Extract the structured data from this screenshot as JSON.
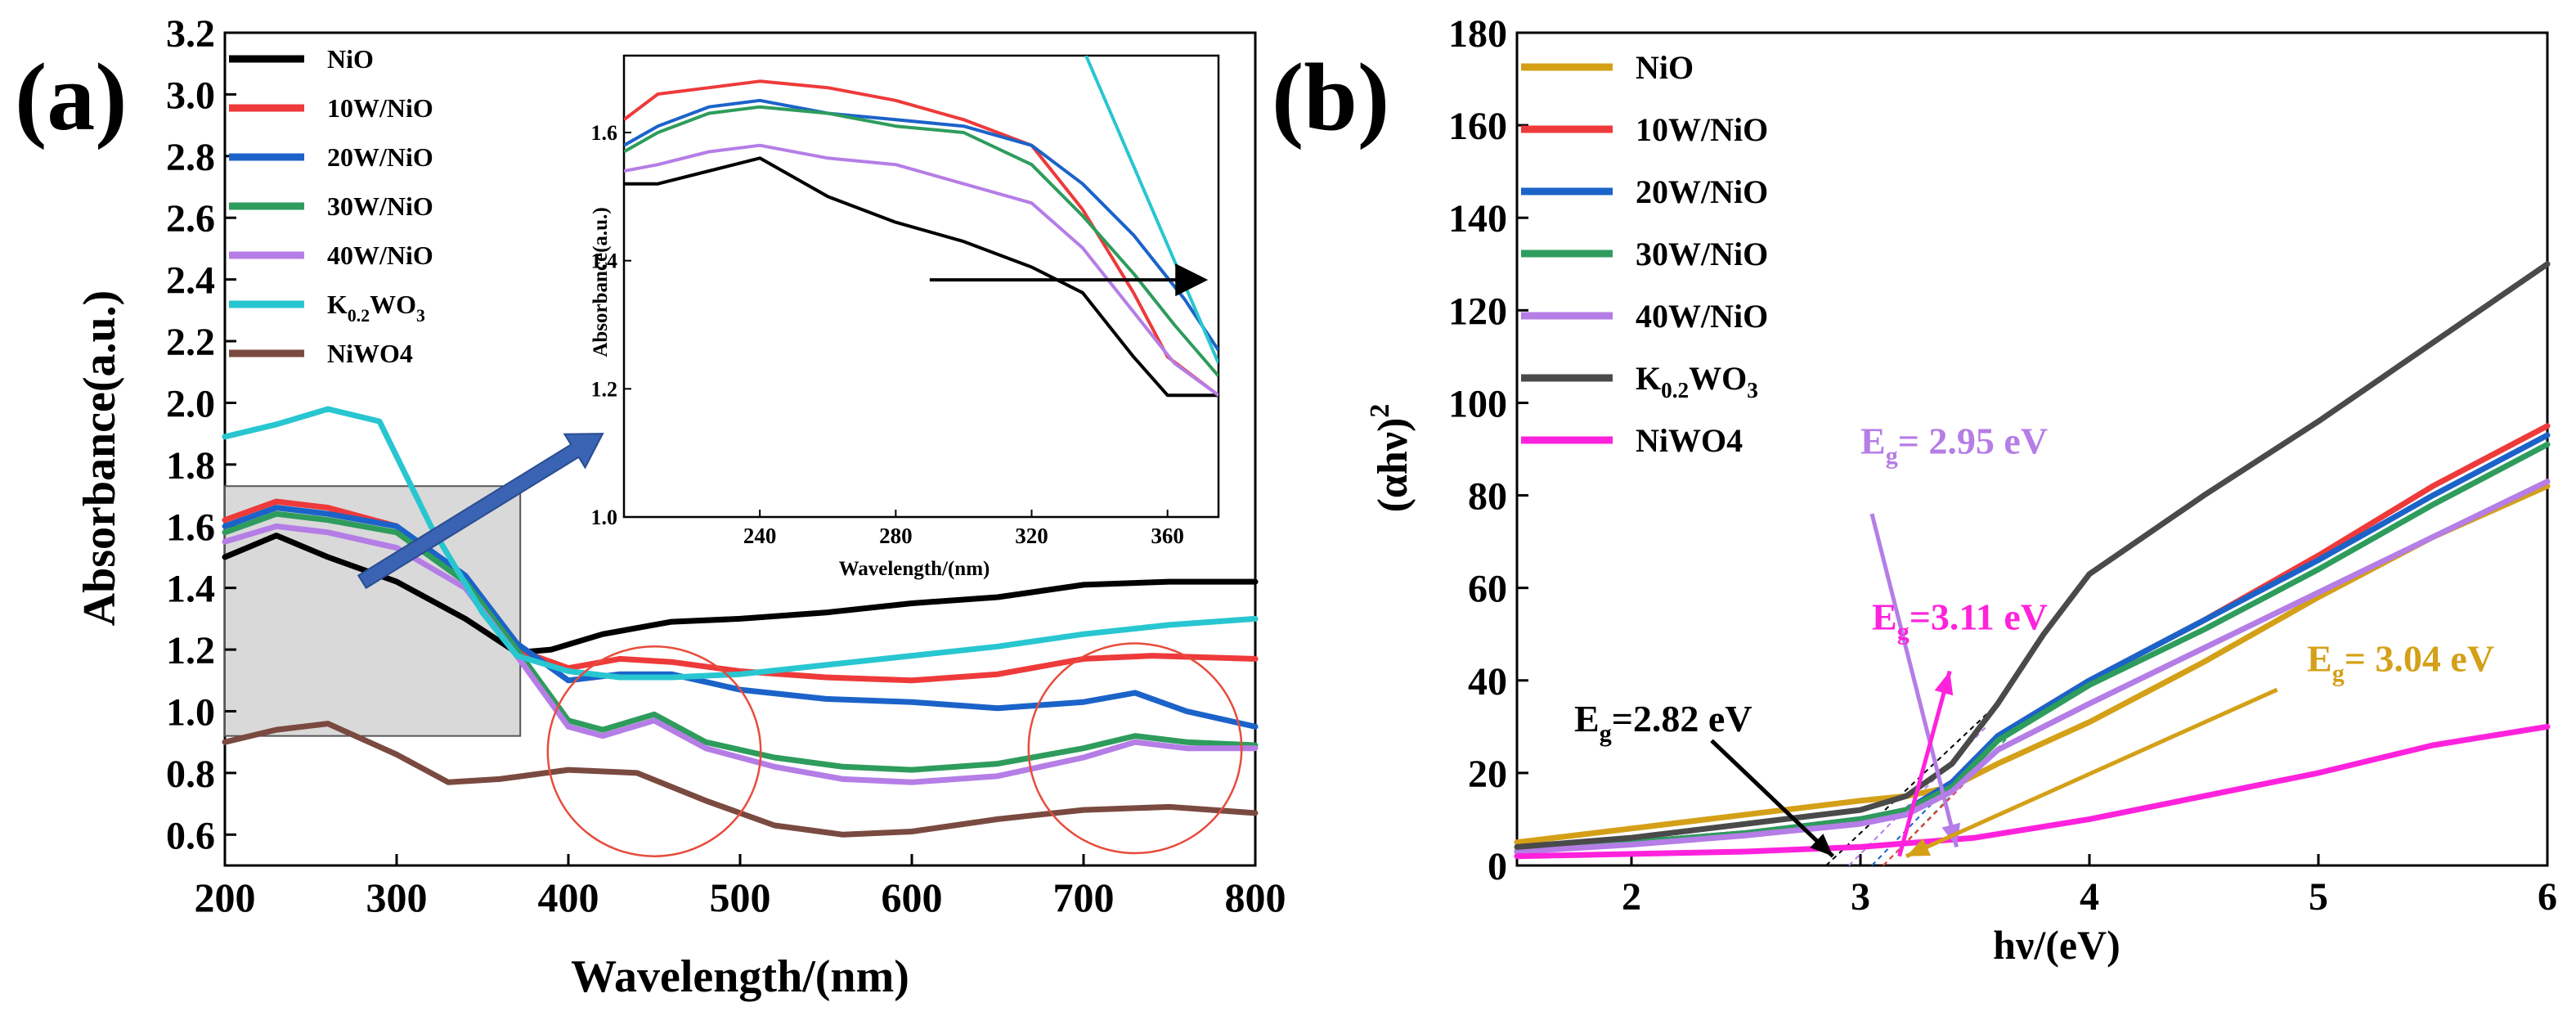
{
  "panel_a": {
    "label": "(a)",
    "inset_arrow_color": "#3a63b4",
    "chart_data": {
      "type": "line",
      "title": "",
      "xlabel": "Wavelength/(nm)",
      "ylabel": "Absorbance(a.u.)",
      "xlim": [
        200,
        800
      ],
      "ylim": [
        0.5,
        3.2
      ],
      "xticks": [
        200,
        300,
        400,
        500,
        600,
        700,
        800
      ],
      "yticks": [
        0.6,
        0.8,
        1.0,
        1.2,
        1.4,
        1.6,
        1.8,
        2.0,
        2.2,
        2.4,
        2.6,
        2.8,
        3.0,
        3.2
      ],
      "legend": "top-left",
      "series": [
        {
          "name": "NiO",
          "color": "#000000",
          "x": [
            200,
            230,
            260,
            300,
            340,
            370,
            390,
            420,
            460,
            500,
            550,
            600,
            650,
            700,
            750,
            800
          ],
          "y": [
            1.5,
            1.57,
            1.5,
            1.42,
            1.3,
            1.19,
            1.2,
            1.25,
            1.29,
            1.3,
            1.32,
            1.35,
            1.37,
            1.41,
            1.42,
            1.42
          ]
        },
        {
          "name": "10W/NiO",
          "color": "#ee3a3a",
          "x": [
            200,
            230,
            260,
            300,
            340,
            370,
            400,
            430,
            460,
            500,
            550,
            600,
            650,
            700,
            740,
            800
          ],
          "y": [
            1.62,
            1.68,
            1.66,
            1.6,
            1.42,
            1.2,
            1.14,
            1.17,
            1.16,
            1.13,
            1.11,
            1.1,
            1.12,
            1.17,
            1.18,
            1.17
          ]
        },
        {
          "name": "20W/NiO",
          "color": "#1b63c9",
          "x": [
            200,
            230,
            260,
            300,
            340,
            370,
            400,
            430,
            460,
            500,
            550,
            600,
            650,
            700,
            730,
            760,
            800
          ],
          "y": [
            1.6,
            1.66,
            1.64,
            1.6,
            1.44,
            1.22,
            1.1,
            1.12,
            1.12,
            1.07,
            1.04,
            1.03,
            1.01,
            1.03,
            1.06,
            1.0,
            0.95
          ]
        },
        {
          "name": "30W/NiO",
          "color": "#2e9c5c",
          "x": [
            200,
            230,
            260,
            300,
            340,
            370,
            400,
            420,
            450,
            480,
            520,
            560,
            600,
            650,
            700,
            730,
            760,
            800
          ],
          "y": [
            1.58,
            1.64,
            1.62,
            1.58,
            1.42,
            1.2,
            0.97,
            0.94,
            0.99,
            0.9,
            0.85,
            0.82,
            0.81,
            0.83,
            0.88,
            0.92,
            0.9,
            0.89
          ]
        },
        {
          "name": "40W/NiO",
          "color": "#b57de6",
          "x": [
            200,
            230,
            260,
            300,
            340,
            370,
            400,
            420,
            450,
            480,
            520,
            560,
            600,
            650,
            700,
            730,
            760,
            800
          ],
          "y": [
            1.55,
            1.6,
            1.58,
            1.53,
            1.4,
            1.18,
            0.95,
            0.92,
            0.97,
            0.88,
            0.82,
            0.78,
            0.77,
            0.79,
            0.85,
            0.9,
            0.88,
            0.88
          ]
        },
        {
          "name": "K0.2WO3",
          "color": "#28c6d0",
          "x": [
            200,
            230,
            260,
            290,
            320,
            350,
            370,
            400,
            430,
            460,
            500,
            550,
            600,
            650,
            700,
            750,
            800
          ],
          "y": [
            1.89,
            1.93,
            1.98,
            1.94,
            1.6,
            1.32,
            1.18,
            1.13,
            1.11,
            1.11,
            1.12,
            1.15,
            1.18,
            1.21,
            1.25,
            1.28,
            1.3
          ]
        },
        {
          "name": "NiWO4",
          "color": "#7a4a40",
          "x": [
            200,
            230,
            260,
            300,
            330,
            360,
            400,
            440,
            480,
            520,
            560,
            600,
            650,
            700,
            750,
            800
          ],
          "y": [
            0.9,
            0.94,
            0.96,
            0.86,
            0.77,
            0.78,
            0.81,
            0.8,
            0.71,
            0.63,
            0.6,
            0.61,
            0.65,
            0.68,
            0.69,
            0.67
          ]
        }
      ],
      "inset": {
        "xlabel": "Wavelength/(nm)",
        "ylabel": "Absorbance(a.u.)",
        "xlim": [
          200,
          375
        ],
        "ylim": [
          1.0,
          1.72
        ],
        "xticks": [
          240,
          280,
          320,
          360
        ],
        "yticks": [
          1.0,
          1.2,
          1.4,
          1.6
        ],
        "series": [
          {
            "name": "NiO",
            "x": [
              200,
              210,
              225,
              240,
              260,
              280,
              300,
              320,
              335,
              350,
              360,
              375
            ],
            "y": [
              1.52,
              1.52,
              1.54,
              1.56,
              1.5,
              1.46,
              1.43,
              1.39,
              1.35,
              1.25,
              1.19,
              1.19
            ]
          },
          {
            "name": "10W/NiO",
            "x": [
              200,
              210,
              225,
              240,
              260,
              280,
              300,
              320,
              335,
              350,
              360,
              375
            ],
            "y": [
              1.62,
              1.66,
              1.67,
              1.68,
              1.67,
              1.65,
              1.62,
              1.58,
              1.48,
              1.35,
              1.25,
              1.19
            ]
          },
          {
            "name": "20W/NiO",
            "x": [
              200,
              210,
              225,
              240,
              260,
              280,
              300,
              320,
              335,
              350,
              365,
              375
            ],
            "y": [
              1.58,
              1.61,
              1.64,
              1.65,
              1.63,
              1.62,
              1.61,
              1.58,
              1.52,
              1.44,
              1.34,
              1.26
            ]
          },
          {
            "name": "30W/NiO",
            "x": [
              200,
              210,
              225,
              240,
              260,
              280,
              300,
              320,
              335,
              350,
              362,
              375
            ],
            "y": [
              1.57,
              1.6,
              1.63,
              1.64,
              1.63,
              1.61,
              1.6,
              1.55,
              1.47,
              1.38,
              1.3,
              1.22
            ]
          },
          {
            "name": "40W/NiO",
            "x": [
              200,
              210,
              225,
              240,
              260,
              280,
              300,
              320,
              335,
              350,
              362,
              375
            ],
            "y": [
              1.54,
              1.55,
              1.57,
              1.58,
              1.56,
              1.55,
              1.52,
              1.49,
              1.42,
              1.32,
              1.24,
              1.19
            ]
          },
          {
            "name": "K0.2WO3",
            "x": [
              336,
              375
            ],
            "y": [
              1.72,
              1.24
            ]
          }
        ],
        "arrow": {
          "x_from": 290,
          "x_to": 370,
          "y": 1.37
        }
      },
      "annotations": {
        "highlight_box_x": [
          200,
          372
        ],
        "highlight_box_y": [
          0.92,
          1.73
        ],
        "circles": [
          {
            "cx": 450,
            "cy": 0.87,
            "rx": 62,
            "ry": 0.34
          },
          {
            "cx": 730,
            "cy": 0.88,
            "rx": 62,
            "ry": 0.34
          }
        ],
        "blue_arrow": {
          "x_from": 280,
          "y_from": 1.42,
          "x_to": 420,
          "y_to": 1.9
        }
      }
    }
  },
  "panel_b": {
    "label": "(b)",
    "chart_data": {
      "type": "line",
      "title": "",
      "xlabel": "hν/(eV)",
      "ylabel_main": "(αhν)",
      "ylabel_sup": "2",
      "xlim": [
        1.5,
        6
      ],
      "ylim": [
        0,
        180
      ],
      "xticks": [
        2,
        3,
        4,
        5,
        6
      ],
      "yticks": [
        0,
        20,
        40,
        60,
        80,
        100,
        120,
        140,
        160,
        180
      ],
      "legend": "top-left",
      "series": [
        {
          "name": "NiO",
          "color": "#d4a017",
          "x": [
            1.5,
            2,
            2.5,
            3,
            3.2,
            3.4,
            3.6,
            4,
            4.5,
            5,
            5.5,
            6
          ],
          "y": [
            5,
            8,
            11,
            14,
            15,
            17,
            22,
            31,
            44,
            58,
            71,
            82
          ]
        },
        {
          "name": "10W/NiO",
          "color": "#ee3a3a",
          "x": [
            1.5,
            2,
            2.5,
            3,
            3.2,
            3.4,
            3.6,
            4,
            4.5,
            5,
            5.5,
            6
          ],
          "y": [
            3,
            5,
            7,
            10,
            12,
            18,
            28,
            40,
            53,
            67,
            82,
            95
          ]
        },
        {
          "name": "20W/NiO",
          "color": "#1b63c9",
          "x": [
            1.5,
            2,
            2.5,
            3,
            3.2,
            3.4,
            3.6,
            4,
            4.5,
            5,
            5.5,
            6
          ],
          "y": [
            3,
            5,
            7,
            10,
            12,
            18,
            28,
            40,
            53,
            66,
            80,
            93
          ]
        },
        {
          "name": "30W/NiO",
          "color": "#2e9c5c",
          "x": [
            1.5,
            2,
            2.5,
            3,
            3.2,
            3.4,
            3.6,
            4,
            4.5,
            5,
            5.5,
            6
          ],
          "y": [
            3,
            5,
            7,
            10,
            12,
            17,
            27,
            39,
            51,
            64,
            78,
            91
          ]
        },
        {
          "name": "40W/NiO",
          "color": "#b57de6",
          "x": [
            1.5,
            2,
            2.5,
            3,
            3.2,
            3.4,
            3.6,
            4,
            4.5,
            5,
            5.5,
            6
          ],
          "y": [
            3,
            4.5,
            6.5,
            9,
            11,
            16,
            25,
            35,
            47,
            59,
            71,
            83
          ]
        },
        {
          "name": "K0.2WO3",
          "color": "#4a4a4a",
          "x": [
            1.5,
            2,
            2.5,
            3,
            3.2,
            3.4,
            3.6,
            3.8,
            4,
            4.5,
            5,
            5.5,
            6
          ],
          "y": [
            4,
            6,
            9,
            12,
            15,
            22,
            35,
            50,
            63,
            80,
            96,
            113,
            130
          ]
        },
        {
          "name": "NiWO4",
          "color": "#ff22dd",
          "x": [
            1.5,
            2,
            2.5,
            3,
            3.5,
            4,
            4.5,
            5,
            5.5,
            6
          ],
          "y": [
            2,
            2.5,
            3,
            4,
            6,
            10,
            15,
            20,
            26,
            30
          ]
        }
      ],
      "annotations": [
        {
          "label_main": "E",
          "label_sub": "g",
          "label_rest": "= 2.95 eV",
          "color": "#b57de6",
          "text_x": 3.0,
          "text_y": 89,
          "arrow_from": [
            3.05,
            76
          ],
          "arrow_to": [
            3.42,
            4
          ]
        },
        {
          "label_main": "E",
          "label_sub": "g",
          "label_rest": "=3.11 eV",
          "color": "#ff22dd",
          "text_x": 3.05,
          "text_y": 51,
          "arrow_from": [
            3.17,
            2
          ],
          "arrow_to": [
            3.39,
            42
          ]
        },
        {
          "label_main": "E",
          "label_sub": "g",
          "label_rest": "= 3.04 eV",
          "color": "#d4a017",
          "text_x": 4.95,
          "text_y": 42,
          "arrow_from": [
            4.82,
            38
          ],
          "arrow_to": [
            3.2,
            2
          ]
        },
        {
          "label_main": "E",
          "label_sub": "g",
          "label_rest": "=2.82 eV",
          "color": "#000000",
          "text_x": 1.75,
          "text_y": 29,
          "arrow_from": [
            2.35,
            27
          ],
          "arrow_to": [
            2.88,
            2
          ]
        }
      ]
    }
  }
}
